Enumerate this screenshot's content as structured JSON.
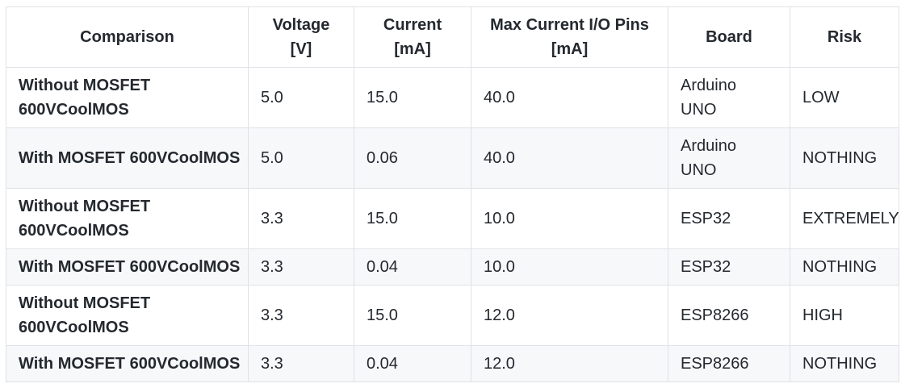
{
  "colors": {
    "text": "#24292f",
    "border": "#dfe2e6",
    "row_stripe": "#f6f8fa",
    "background": "#ffffff"
  },
  "table": {
    "columns": [
      {
        "key": "comparison",
        "label": "Comparison"
      },
      {
        "key": "voltage",
        "label": "Voltage\n[V]"
      },
      {
        "key": "current",
        "label": "Current\n[mA]"
      },
      {
        "key": "max_current_io_pins",
        "label": "Max Current I/O Pins\n[mA]"
      },
      {
        "key": "board",
        "label": "Board"
      },
      {
        "key": "risk",
        "label": "Risk"
      }
    ],
    "rows": [
      {
        "comparison": "Without MOSFET\n600VCoolMOS",
        "voltage": "5.0",
        "current": "15.0",
        "max_current_io_pins": "40.0",
        "board": "Arduino\nUNO",
        "risk": "LOW"
      },
      {
        "comparison": "With MOSFET 600VCoolMOS",
        "voltage": "5.0",
        "current": "0.06",
        "max_current_io_pins": "40.0",
        "board": "Arduino\nUNO",
        "risk": "NOTHING"
      },
      {
        "comparison": "Without MOSFET\n600VCoolMOS",
        "voltage": "3.3",
        "current": "15.0",
        "max_current_io_pins": "10.0",
        "board": "ESP32",
        "risk": "EXTREMELY"
      },
      {
        "comparison": "With MOSFET 600VCoolMOS",
        "voltage": "3.3",
        "current": "0.04",
        "max_current_io_pins": "10.0",
        "board": "ESP32",
        "risk": "NOTHING"
      },
      {
        "comparison": "Without MOSFET\n600VCoolMOS",
        "voltage": "3.3",
        "current": "15.0",
        "max_current_io_pins": "12.0",
        "board": "ESP8266",
        "risk": "HIGH"
      },
      {
        "comparison": "With MOSFET 600VCoolMOS",
        "voltage": "3.3",
        "current": "0.04",
        "max_current_io_pins": "12.0",
        "board": "ESP8266",
        "risk": "NOTHING"
      }
    ]
  }
}
